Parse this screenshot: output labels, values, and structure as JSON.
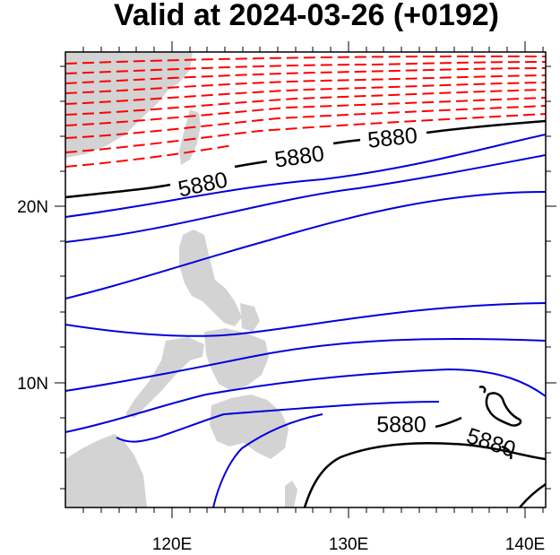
{
  "title": "Valid at 2024-03-26 (+0192)",
  "axes": {
    "lon_labels": [
      "120E",
      "130E",
      "140E"
    ],
    "lat_labels": [
      "20N",
      "10N"
    ]
  },
  "contour_labels": [
    "5880",
    "5880",
    "5880",
    "5880",
    "5880"
  ],
  "colors": {
    "land": "#d3d3d3",
    "warm_contour": "#ff0000",
    "cool_contour": "#0000dd",
    "reference_contour": "#000000"
  },
  "legend": {
    "reference_contour_value": "5880"
  }
}
